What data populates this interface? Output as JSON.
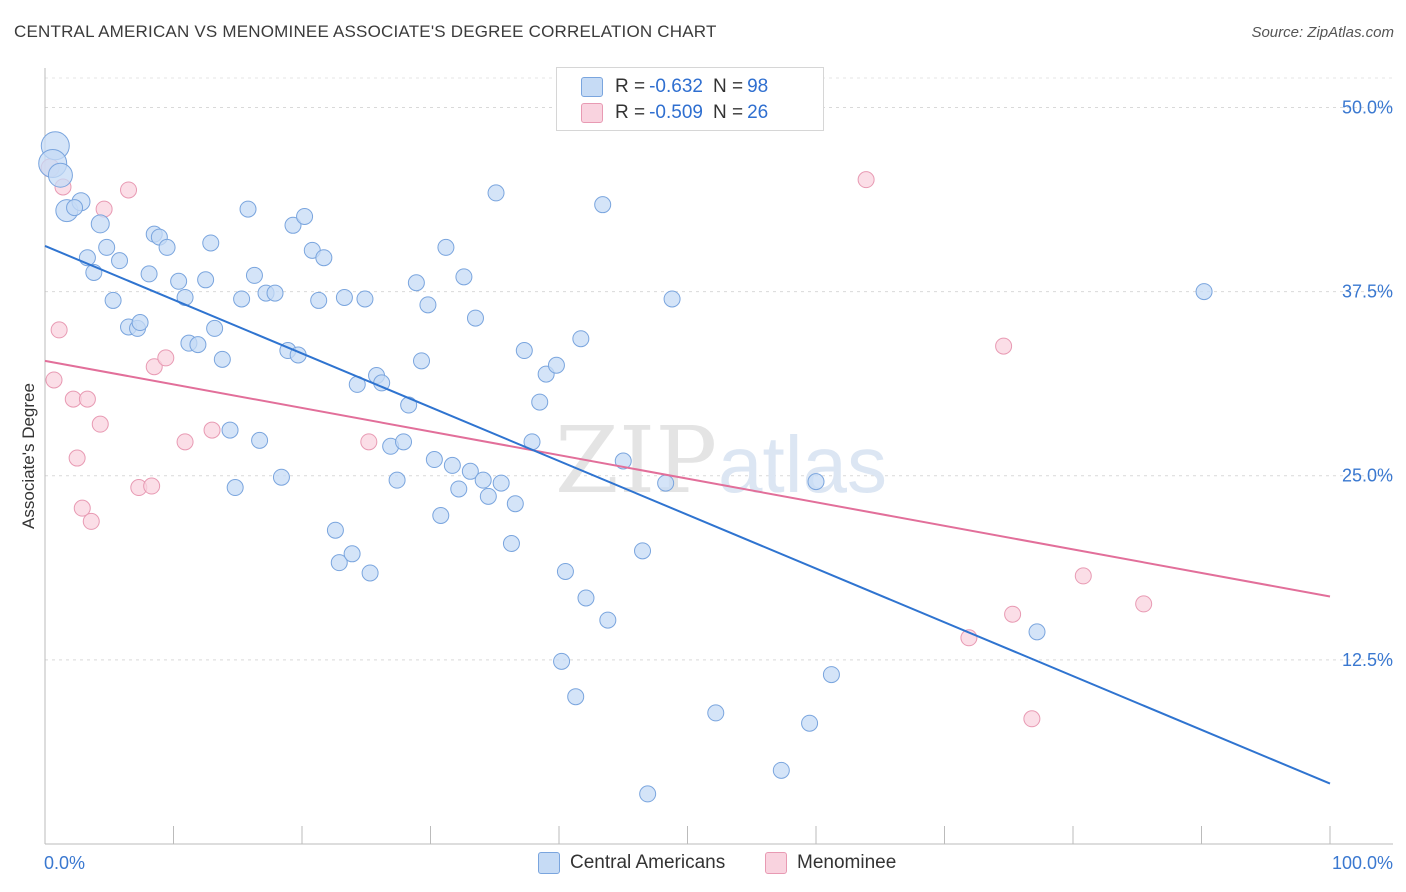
{
  "title": "CENTRAL AMERICAN VS MENOMINEE ASSOCIATE'S DEGREE CORRELATION CHART",
  "source": "Source: ZipAtlas.com",
  "watermark": {
    "zip": "ZIP",
    "atlas": "atlas"
  },
  "legend": {
    "rows": [
      {
        "r_label": "R =",
        "r_value": "-0.632",
        "n_label": "N =",
        "n_value": "98",
        "color": "#a9c8f0"
      },
      {
        "r_label": "R =",
        "r_value": "-0.509",
        "n_label": "N =",
        "n_value": "26",
        "color": "#f6b8cb"
      }
    ]
  },
  "colors": {
    "blue_fill": "#c6dbf5",
    "blue_stroke": "#7aa5de",
    "blue_line": "#2f74d0",
    "pink_fill": "#f9d3df",
    "pink_stroke": "#e89ab3",
    "pink_line": "#e26f9a",
    "tick_label": "#3a78d0"
  },
  "chart_data": {
    "type": "scatter",
    "title": "CENTRAL AMERICAN VS MENOMINEE ASSOCIATE'S DEGREE CORRELATION CHART",
    "xlabel": "",
    "ylabel": "Associate's Degree",
    "xlim": [
      0,
      100
    ],
    "ylim": [
      0,
      52
    ],
    "x_tick_labels": [
      "0.0%",
      "100.0%"
    ],
    "y_ticks": [
      12.5,
      25.0,
      37.5,
      50.0
    ],
    "y_tick_labels": [
      "12.5%",
      "25.0%",
      "37.5%",
      "50.0%"
    ],
    "grid": true,
    "legend_placement": "bottom",
    "series": [
      {
        "name": "Central Americans",
        "color": "#7aa5de",
        "trend": {
          "x": [
            0,
            100
          ],
          "y": [
            40.6,
            4.1
          ]
        },
        "points": [
          {
            "x": 0.8,
            "y": 47.4,
            "s": 14
          },
          {
            "x": 0.6,
            "y": 46.2,
            "s": 14
          },
          {
            "x": 1.2,
            "y": 45.4,
            "s": 12
          },
          {
            "x": 1.7,
            "y": 43.0,
            "s": 11
          },
          {
            "x": 2.8,
            "y": 43.6,
            "s": 9
          },
          {
            "x": 4.3,
            "y": 42.1,
            "s": 9
          },
          {
            "x": 2.3,
            "y": 43.2,
            "s": 8
          },
          {
            "x": 3.3,
            "y": 39.8,
            "s": 8
          },
          {
            "x": 4.8,
            "y": 40.5,
            "s": 8
          },
          {
            "x": 5.8,
            "y": 39.6,
            "s": 8
          },
          {
            "x": 3.8,
            "y": 38.8,
            "s": 8
          },
          {
            "x": 5.3,
            "y": 36.9,
            "s": 8
          },
          {
            "x": 6.5,
            "y": 35.1,
            "s": 8
          },
          {
            "x": 7.2,
            "y": 35.0,
            "s": 8
          },
          {
            "x": 7.4,
            "y": 35.4,
            "s": 8
          },
          {
            "x": 8.1,
            "y": 38.7,
            "s": 8
          },
          {
            "x": 8.5,
            "y": 41.4,
            "s": 8
          },
          {
            "x": 8.9,
            "y": 41.2,
            "s": 8
          },
          {
            "x": 9.5,
            "y": 40.5,
            "s": 8
          },
          {
            "x": 10.4,
            "y": 38.2,
            "s": 8
          },
          {
            "x": 10.9,
            "y": 37.1,
            "s": 8
          },
          {
            "x": 11.2,
            "y": 34.0,
            "s": 8
          },
          {
            "x": 11.9,
            "y": 33.9,
            "s": 8
          },
          {
            "x": 12.5,
            "y": 38.3,
            "s": 8
          },
          {
            "x": 12.9,
            "y": 40.8,
            "s": 8
          },
          {
            "x": 13.2,
            "y": 35.0,
            "s": 8
          },
          {
            "x": 13.8,
            "y": 32.9,
            "s": 8
          },
          {
            "x": 14.4,
            "y": 28.1,
            "s": 8
          },
          {
            "x": 14.8,
            "y": 24.2,
            "s": 8
          },
          {
            "x": 15.3,
            "y": 37.0,
            "s": 8
          },
          {
            "x": 15.8,
            "y": 43.1,
            "s": 8
          },
          {
            "x": 16.3,
            "y": 38.6,
            "s": 8
          },
          {
            "x": 16.7,
            "y": 27.4,
            "s": 8
          },
          {
            "x": 17.2,
            "y": 37.4,
            "s": 8
          },
          {
            "x": 17.9,
            "y": 37.4,
            "s": 8
          },
          {
            "x": 18.4,
            "y": 24.9,
            "s": 8
          },
          {
            "x": 18.9,
            "y": 33.5,
            "s": 8
          },
          {
            "x": 19.3,
            "y": 42.0,
            "s": 8
          },
          {
            "x": 19.7,
            "y": 33.2,
            "s": 8
          },
          {
            "x": 20.2,
            "y": 42.6,
            "s": 8
          },
          {
            "x": 20.8,
            "y": 40.3,
            "s": 8
          },
          {
            "x": 21.3,
            "y": 36.9,
            "s": 8
          },
          {
            "x": 21.7,
            "y": 39.8,
            "s": 8
          },
          {
            "x": 22.6,
            "y": 21.3,
            "s": 8
          },
          {
            "x": 22.9,
            "y": 19.1,
            "s": 8
          },
          {
            "x": 23.3,
            "y": 37.1,
            "s": 8
          },
          {
            "x": 23.9,
            "y": 19.7,
            "s": 8
          },
          {
            "x": 24.3,
            "y": 31.2,
            "s": 8
          },
          {
            "x": 24.9,
            "y": 37.0,
            "s": 8
          },
          {
            "x": 25.3,
            "y": 18.4,
            "s": 8
          },
          {
            "x": 25.8,
            "y": 31.8,
            "s": 8
          },
          {
            "x": 26.2,
            "y": 31.3,
            "s": 8
          },
          {
            "x": 26.9,
            "y": 27.0,
            "s": 8
          },
          {
            "x": 27.4,
            "y": 24.7,
            "s": 8
          },
          {
            "x": 27.9,
            "y": 27.3,
            "s": 8
          },
          {
            "x": 28.3,
            "y": 29.8,
            "s": 8
          },
          {
            "x": 28.9,
            "y": 38.1,
            "s": 8
          },
          {
            "x": 29.3,
            "y": 32.8,
            "s": 8
          },
          {
            "x": 29.8,
            "y": 36.6,
            "s": 8
          },
          {
            "x": 30.3,
            "y": 26.1,
            "s": 8
          },
          {
            "x": 30.8,
            "y": 22.3,
            "s": 8
          },
          {
            "x": 31.2,
            "y": 40.5,
            "s": 8
          },
          {
            "x": 31.7,
            "y": 25.7,
            "s": 8
          },
          {
            "x": 32.2,
            "y": 24.1,
            "s": 8
          },
          {
            "x": 32.6,
            "y": 38.5,
            "s": 8
          },
          {
            "x": 33.1,
            "y": 25.3,
            "s": 8
          },
          {
            "x": 33.5,
            "y": 35.7,
            "s": 8
          },
          {
            "x": 34.1,
            "y": 24.7,
            "s": 8
          },
          {
            "x": 34.5,
            "y": 23.6,
            "s": 8
          },
          {
            "x": 35.1,
            "y": 44.2,
            "s": 8
          },
          {
            "x": 35.5,
            "y": 24.5,
            "s": 8
          },
          {
            "x": 36.3,
            "y": 20.4,
            "s": 8
          },
          {
            "x": 36.6,
            "y": 23.1,
            "s": 8
          },
          {
            "x": 37.3,
            "y": 33.5,
            "s": 8
          },
          {
            "x": 37.9,
            "y": 27.3,
            "s": 8
          },
          {
            "x": 38.5,
            "y": 30.0,
            "s": 8
          },
          {
            "x": 39.0,
            "y": 31.9,
            "s": 8
          },
          {
            "x": 39.8,
            "y": 32.5,
            "s": 8
          },
          {
            "x": 40.2,
            "y": 12.4,
            "s": 8
          },
          {
            "x": 40.5,
            "y": 18.5,
            "s": 8
          },
          {
            "x": 41.3,
            "y": 10.0,
            "s": 8
          },
          {
            "x": 41.7,
            "y": 34.3,
            "s": 8
          },
          {
            "x": 42.1,
            "y": 16.7,
            "s": 8
          },
          {
            "x": 43.8,
            "y": 15.2,
            "s": 8
          },
          {
            "x": 43.4,
            "y": 43.4,
            "s": 8
          },
          {
            "x": 45.0,
            "y": 26.0,
            "s": 8
          },
          {
            "x": 46.5,
            "y": 19.9,
            "s": 8
          },
          {
            "x": 46.9,
            "y": 3.4,
            "s": 8
          },
          {
            "x": 48.3,
            "y": 24.5,
            "s": 8
          },
          {
            "x": 48.8,
            "y": 37.0,
            "s": 8
          },
          {
            "x": 52.2,
            "y": 8.9,
            "s": 8
          },
          {
            "x": 57.3,
            "y": 5.0,
            "s": 8
          },
          {
            "x": 59.5,
            "y": 8.2,
            "s": 8
          },
          {
            "x": 60.0,
            "y": 24.6,
            "s": 8
          },
          {
            "x": 61.2,
            "y": 11.5,
            "s": 8
          },
          {
            "x": 77.2,
            "y": 14.4,
            "s": 8
          },
          {
            "x": 90.2,
            "y": 37.5,
            "s": 8
          }
        ]
      },
      {
        "name": "Menominee",
        "color": "#e89ab3",
        "trend": {
          "x": [
            0,
            100
          ],
          "y": [
            32.8,
            16.8
          ]
        },
        "points": [
          {
            "x": 0.4,
            "y": 45.9,
            "s": 9
          },
          {
            "x": 1.4,
            "y": 44.6,
            "s": 8
          },
          {
            "x": 1.1,
            "y": 34.9,
            "s": 8
          },
          {
            "x": 0.7,
            "y": 31.5,
            "s": 8
          },
          {
            "x": 2.2,
            "y": 30.2,
            "s": 8
          },
          {
            "x": 3.3,
            "y": 30.2,
            "s": 8
          },
          {
            "x": 4.3,
            "y": 28.5,
            "s": 8
          },
          {
            "x": 2.5,
            "y": 26.2,
            "s": 8
          },
          {
            "x": 2.9,
            "y": 22.8,
            "s": 8
          },
          {
            "x": 3.6,
            "y": 21.9,
            "s": 8
          },
          {
            "x": 6.5,
            "y": 44.4,
            "s": 8
          },
          {
            "x": 4.6,
            "y": 43.1,
            "s": 8
          },
          {
            "x": 7.3,
            "y": 24.2,
            "s": 8
          },
          {
            "x": 8.3,
            "y": 24.3,
            "s": 8
          },
          {
            "x": 8.5,
            "y": 32.4,
            "s": 8
          },
          {
            "x": 9.4,
            "y": 33.0,
            "s": 8
          },
          {
            "x": 10.9,
            "y": 27.3,
            "s": 8
          },
          {
            "x": 13.0,
            "y": 28.1,
            "s": 8
          },
          {
            "x": 25.2,
            "y": 27.3,
            "s": 8
          },
          {
            "x": 63.9,
            "y": 45.1,
            "s": 8
          },
          {
            "x": 74.6,
            "y": 33.8,
            "s": 8
          },
          {
            "x": 71.9,
            "y": 14.0,
            "s": 8
          },
          {
            "x": 75.3,
            "y": 15.6,
            "s": 8
          },
          {
            "x": 76.8,
            "y": 8.5,
            "s": 8
          },
          {
            "x": 80.8,
            "y": 18.2,
            "s": 8
          },
          {
            "x": 85.5,
            "y": 16.3,
            "s": 8
          }
        ]
      }
    ]
  }
}
